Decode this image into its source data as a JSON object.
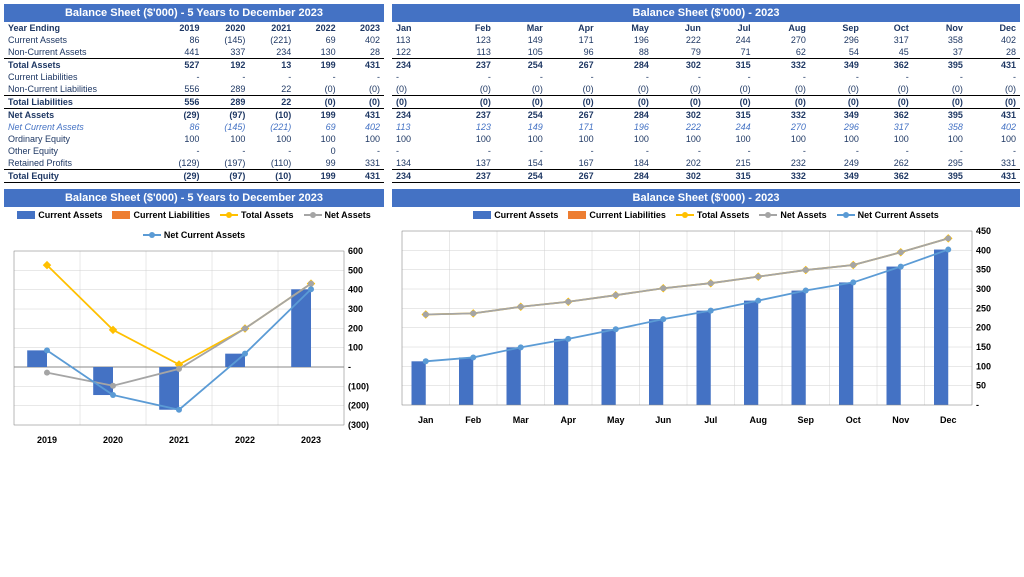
{
  "table_left": {
    "title": "Balance Sheet ($'000) - 5 Years to December 2023",
    "header_label": "Year Ending",
    "years": [
      "2019",
      "2020",
      "2021",
      "2022",
      "2023"
    ],
    "rows": [
      {
        "label": "Current Assets",
        "v": [
          "86",
          "(145)",
          "(221)",
          "69",
          "402"
        ],
        "style": "normal"
      },
      {
        "label": "Non-Current Assets",
        "v": [
          "441",
          "337",
          "234",
          "130",
          "28"
        ],
        "style": "normal"
      },
      {
        "label": "Total Assets",
        "v": [
          "527",
          "192",
          "13",
          "199",
          "431"
        ],
        "style": "bold"
      },
      {
        "label": "Current Liabilities",
        "v": [
          "-",
          "-",
          "-",
          "-",
          "-"
        ],
        "style": "normal"
      },
      {
        "label": "Non-Current Liabilities",
        "v": [
          "556",
          "289",
          "22",
          "(0)",
          "(0)"
        ],
        "style": "normal"
      },
      {
        "label": "Total Liabilities",
        "v": [
          "556",
          "289",
          "22",
          "(0)",
          "(0)"
        ],
        "style": "bold"
      },
      {
        "label": "Net Assets",
        "v": [
          "(29)",
          "(97)",
          "(10)",
          "199",
          "431"
        ],
        "style": "bold"
      },
      {
        "label": "Net Current Assets",
        "v": [
          "86",
          "(145)",
          "(221)",
          "69",
          "402"
        ],
        "style": "italic"
      },
      {
        "label": "Ordinary Equity",
        "v": [
          "100",
          "100",
          "100",
          "100",
          "100"
        ],
        "style": "normal"
      },
      {
        "label": "Other Equity",
        "v": [
          "-",
          "-",
          "-",
          "0",
          "-"
        ],
        "style": "normal"
      },
      {
        "label": "Retained Profits",
        "v": [
          "(129)",
          "(197)",
          "(110)",
          "99",
          "331"
        ],
        "style": "normal"
      },
      {
        "label": "Total Equity",
        "v": [
          "(29)",
          "(97)",
          "(10)",
          "199",
          "431"
        ],
        "style": "total"
      }
    ]
  },
  "table_right": {
    "title": "Balance Sheet ($'000) - 2023",
    "months": [
      "Jan",
      "Feb",
      "Mar",
      "Apr",
      "May",
      "Jun",
      "Jul",
      "Aug",
      "Sep",
      "Oct",
      "Nov",
      "Dec"
    ],
    "rows": [
      {
        "v": [
          "113",
          "123",
          "149",
          "171",
          "196",
          "222",
          "244",
          "270",
          "296",
          "317",
          "358",
          "402"
        ],
        "style": "normal"
      },
      {
        "v": [
          "122",
          "113",
          "105",
          "96",
          "88",
          "79",
          "71",
          "62",
          "54",
          "45",
          "37",
          "28"
        ],
        "style": "normal"
      },
      {
        "v": [
          "234",
          "237",
          "254",
          "267",
          "284",
          "302",
          "315",
          "332",
          "349",
          "362",
          "395",
          "431"
        ],
        "style": "bold"
      },
      {
        "v": [
          "-",
          "-",
          "-",
          "-",
          "-",
          "-",
          "-",
          "-",
          "-",
          "-",
          "-",
          "-"
        ],
        "style": "normal"
      },
      {
        "v": [
          "(0)",
          "(0)",
          "(0)",
          "(0)",
          "(0)",
          "(0)",
          "(0)",
          "(0)",
          "(0)",
          "(0)",
          "(0)",
          "(0)"
        ],
        "style": "normal"
      },
      {
        "v": [
          "(0)",
          "(0)",
          "(0)",
          "(0)",
          "(0)",
          "(0)",
          "(0)",
          "(0)",
          "(0)",
          "(0)",
          "(0)",
          "(0)"
        ],
        "style": "bold"
      },
      {
        "v": [
          "234",
          "237",
          "254",
          "267",
          "284",
          "302",
          "315",
          "332",
          "349",
          "362",
          "395",
          "431"
        ],
        "style": "bold"
      },
      {
        "v": [
          "113",
          "123",
          "149",
          "171",
          "196",
          "222",
          "244",
          "270",
          "296",
          "317",
          "358",
          "402"
        ],
        "style": "italic"
      },
      {
        "v": [
          "100",
          "100",
          "100",
          "100",
          "100",
          "100",
          "100",
          "100",
          "100",
          "100",
          "100",
          "100"
        ],
        "style": "normal"
      },
      {
        "v": [
          "-",
          "-",
          "-",
          "-",
          "-",
          "-",
          "-",
          "-",
          "-",
          "-",
          "-",
          "-"
        ],
        "style": "normal"
      },
      {
        "v": [
          "134",
          "137",
          "154",
          "167",
          "184",
          "202",
          "215",
          "232",
          "249",
          "262",
          "295",
          "331"
        ],
        "style": "normal"
      },
      {
        "v": [
          "234",
          "237",
          "254",
          "267",
          "284",
          "302",
          "315",
          "332",
          "349",
          "362",
          "395",
          "431"
        ],
        "style": "total"
      }
    ]
  },
  "chart_left": {
    "title": "Balance Sheet ($'000) - 5 Years to December 2023",
    "categories": [
      "2019",
      "2020",
      "2021",
      "2022",
      "2023"
    ],
    "ylim": [
      -300,
      600
    ],
    "yticks": [
      -300,
      -200,
      -100,
      0,
      100,
      200,
      300,
      400,
      500,
      600
    ],
    "ytick_labels": [
      "(300)",
      "(200)",
      "(100)",
      "-",
      "100",
      "200",
      "300",
      "400",
      "500",
      "600"
    ],
    "series": {
      "current_assets": {
        "type": "bar",
        "color": "#4472c4",
        "label": "Current Assets",
        "values": [
          86,
          -145,
          -221,
          69,
          402
        ]
      },
      "current_liabilities": {
        "type": "bar",
        "color": "#ed7d31",
        "label": "Current Liabilities",
        "values": [
          0,
          0,
          0,
          0,
          0
        ]
      },
      "total_assets": {
        "type": "line",
        "color": "#ffc000",
        "label": "Total Assets",
        "values": [
          527,
          192,
          13,
          199,
          431
        ],
        "marker": "diamond"
      },
      "net_assets": {
        "type": "line",
        "color": "#a5a5a5",
        "label": "Net Assets",
        "values": [
          -29,
          -97,
          -10,
          199,
          431
        ],
        "marker": "circle"
      },
      "net_current_assets": {
        "type": "line",
        "color": "#5b9bd5",
        "label": "Net Current Assets",
        "values": [
          86,
          -145,
          -221,
          69,
          402
        ],
        "marker": "circle"
      }
    },
    "background_color": "#ffffff",
    "grid_color": "#d0d0d0"
  },
  "chart_right": {
    "title": "Balance Sheet ($'000) - 2023",
    "categories": [
      "Jan",
      "Feb",
      "Mar",
      "Apr",
      "May",
      "Jun",
      "Jul",
      "Aug",
      "Sep",
      "Oct",
      "Nov",
      "Dec"
    ],
    "ylim": [
      0,
      450
    ],
    "yticks": [
      0,
      50,
      100,
      150,
      200,
      250,
      300,
      350,
      400,
      450
    ],
    "ytick_labels": [
      "-",
      "50",
      "100",
      "150",
      "200",
      "250",
      "300",
      "350",
      "400",
      "450"
    ],
    "series": {
      "current_assets": {
        "type": "bar",
        "color": "#4472c4",
        "label": "Current Assets",
        "values": [
          113,
          123,
          149,
          171,
          196,
          222,
          244,
          270,
          296,
          317,
          358,
          402
        ]
      },
      "current_liabilities": {
        "type": "bar",
        "color": "#ed7d31",
        "label": "Current Liabilities",
        "values": [
          0,
          0,
          0,
          0,
          0,
          0,
          0,
          0,
          0,
          0,
          0,
          0
        ]
      },
      "total_assets": {
        "type": "line",
        "color": "#ffc000",
        "label": "Total Assets",
        "values": [
          234,
          237,
          254,
          267,
          284,
          302,
          315,
          332,
          349,
          362,
          395,
          431
        ],
        "marker": "diamond"
      },
      "net_assets": {
        "type": "line",
        "color": "#a5a5a5",
        "label": "Net Assets",
        "values": [
          234,
          237,
          254,
          267,
          284,
          302,
          315,
          332,
          349,
          362,
          395,
          431
        ],
        "marker": "circle"
      },
      "net_current_assets": {
        "type": "line",
        "color": "#5b9bd5",
        "label": "Net Current Assets",
        "values": [
          113,
          123,
          149,
          171,
          196,
          222,
          244,
          270,
          296,
          317,
          358,
          402
        ],
        "marker": "circle"
      }
    },
    "background_color": "#ffffff",
    "grid_color": "#d0d0d0"
  }
}
